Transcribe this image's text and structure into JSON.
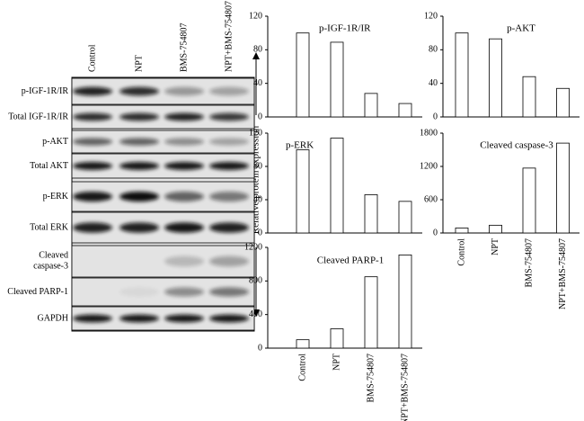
{
  "blot": {
    "lanes": [
      "Control",
      "NPT",
      "BMS-754807",
      "NPT+BMS-754807"
    ],
    "rows": [
      "p-IGF-1R/IR",
      "Total IGF-1R/IR",
      "p-AKT",
      "Total AKT",
      "p-ERK",
      "Total ERK",
      "Cleaved caspase-3",
      "Cleaved PARP-1",
      "GAPDH"
    ]
  },
  "shared_ylabel": "Relative protein expression",
  "chart_data": [
    {
      "type": "bar",
      "title": "p-IGF-1R/IR",
      "categories": [
        null,
        null,
        null,
        null
      ],
      "values": [
        100,
        89,
        28,
        16
      ],
      "ylim": [
        0,
        120
      ],
      "yticks": [
        0,
        40,
        80,
        120
      ]
    },
    {
      "type": "bar",
      "title": "p-AKT",
      "categories": [
        null,
        null,
        null,
        null
      ],
      "values": [
        100,
        93,
        48,
        34
      ],
      "ylim": [
        0,
        120
      ],
      "yticks": [
        0,
        40,
        80,
        120
      ]
    },
    {
      "type": "bar",
      "title": "p-ERK",
      "categories": [
        null,
        null,
        null,
        null
      ],
      "values": [
        100,
        114,
        46,
        38
      ],
      "ylim": [
        0,
        120
      ],
      "yticks": [
        0,
        40,
        80,
        120
      ]
    },
    {
      "type": "bar",
      "title": "Cleaved caspase-3",
      "categories": [
        "Control",
        "NPT",
        "BMS-754807",
        "NPT+BMS-754807"
      ],
      "values": [
        90,
        140,
        1170,
        1620
      ],
      "ylim": [
        0,
        1800
      ],
      "yticks": [
        0,
        600,
        1200,
        1800
      ]
    },
    {
      "type": "bar",
      "title": "Cleaved PARP-1",
      "categories": [
        "Control",
        "NPT",
        "BMS-754807",
        "NPT+BMS-754807"
      ],
      "values": [
        100,
        230,
        850,
        1110
      ],
      "ylim": [
        0,
        1200
      ],
      "yticks": [
        0,
        400,
        800,
        1200
      ]
    }
  ]
}
